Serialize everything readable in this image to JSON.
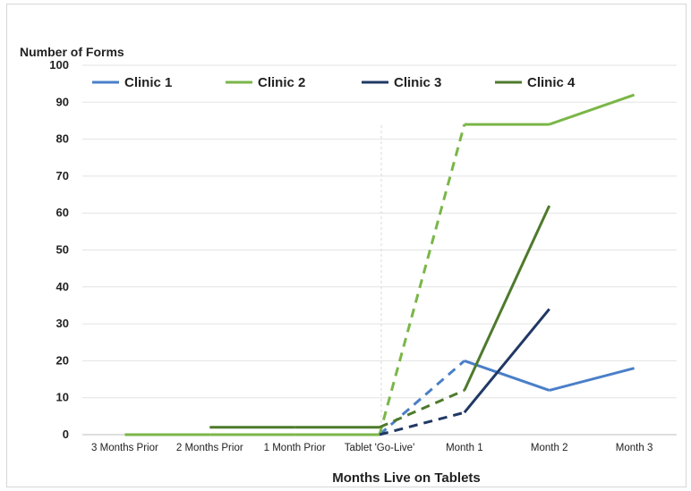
{
  "chart_data": {
    "type": "line",
    "title": "",
    "ylabel": "Number of Forms",
    "xlabel": "Months Live on Tablets",
    "categories": [
      "3 Months Prior",
      "2 Months Prior",
      "1 Month Prior",
      "Tablet 'Go-Live'",
      "Month 1",
      "Month 2",
      "Month 3"
    ],
    "ylim": [
      0,
      100
    ],
    "yticks": [
      0,
      10,
      20,
      30,
      40,
      50,
      60,
      70,
      80,
      90,
      100
    ],
    "grid": true,
    "legend_position": "top-left",
    "series": [
      {
        "name": "Clinic 1",
        "color": "#4a7fc8",
        "values": [
          null,
          null,
          null,
          0,
          20,
          12,
          18
        ]
      },
      {
        "name": "Clinic 2",
        "color": "#7ab648",
        "values": [
          0,
          0,
          0,
          0,
          84,
          84,
          92
        ]
      },
      {
        "name": "Clinic 3",
        "color": "#203864",
        "values": [
          null,
          null,
          null,
          0,
          6,
          34,
          null
        ]
      },
      {
        "name": "Clinic 4",
        "color": "#4e7a2c",
        "values": [
          null,
          2,
          2,
          2,
          12,
          62,
          null
        ]
      }
    ],
    "dashed_segment": {
      "from_category": "Tablet 'Go-Live'",
      "to_category": "Month 1"
    },
    "divider_at_category": "Tablet 'Go-Live'"
  }
}
